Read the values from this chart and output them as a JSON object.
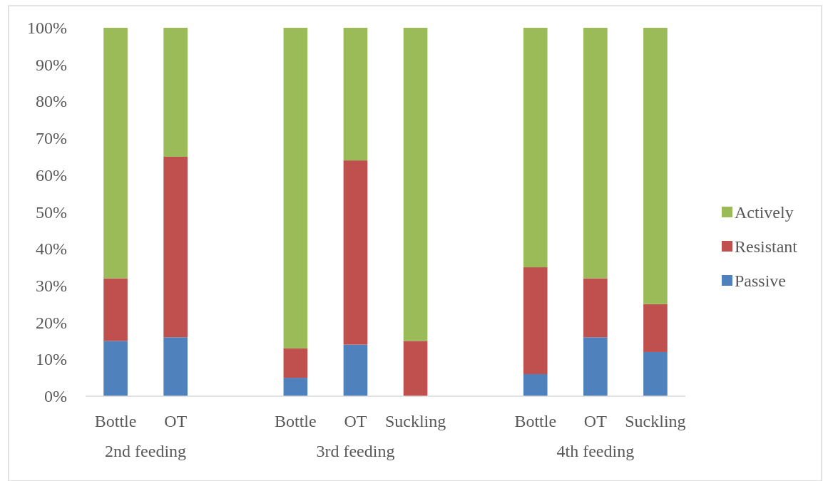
{
  "chart_data": {
    "type": "bar",
    "stacked": true,
    "categories": [
      "Bottle",
      "OT",
      null,
      "Bottle",
      "OT",
      "Suckling",
      null,
      "Bottle",
      "OT",
      "Suckling"
    ],
    "series": [
      {
        "name": "Passive",
        "color": "#4f81bd",
        "values": [
          15,
          16,
          null,
          5,
          14,
          0,
          null,
          6,
          16,
          12
        ]
      },
      {
        "name": "Resistant",
        "color": "#c0504d",
        "values": [
          17,
          49,
          null,
          8,
          50,
          15,
          null,
          29,
          16,
          13
        ]
      },
      {
        "name": "Actively",
        "color": "#9bbb59",
        "values": [
          68,
          35,
          null,
          87,
          36,
          85,
          null,
          65,
          68,
          75
        ]
      }
    ],
    "ylim": [
      0,
      100
    ],
    "yticks": [
      {
        "value": 0,
        "label": "0%"
      },
      {
        "value": 10,
        "label": "10%"
      },
      {
        "value": 20,
        "label": "20%"
      },
      {
        "value": 30,
        "label": "30%"
      },
      {
        "value": 40,
        "label": "40%"
      },
      {
        "value": 50,
        "label": "50%"
      },
      {
        "value": 60,
        "label": "60%"
      },
      {
        "value": 70,
        "label": "70%"
      },
      {
        "value": 80,
        "label": "80%"
      },
      {
        "value": 90,
        "label": "90%"
      },
      {
        "value": 100,
        "label": "100%"
      }
    ],
    "annotations": [
      "2nd feeding",
      "3rd feeding",
      "4th feeding"
    ],
    "legend": "right",
    "grid": false
  }
}
